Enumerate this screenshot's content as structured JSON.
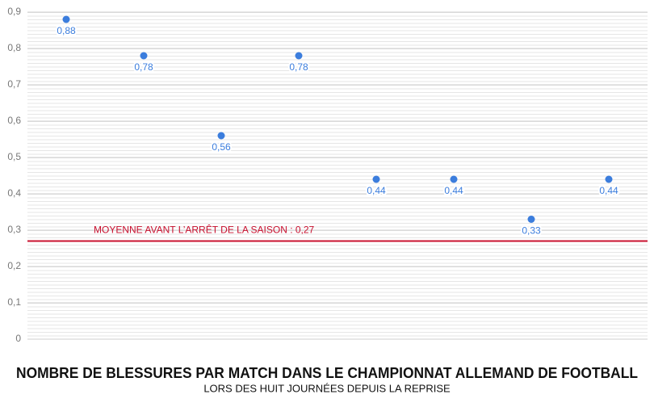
{
  "chart_data": {
    "type": "scatter",
    "title": "NOMBRE DE BLESSURES PAR MATCH DANS LE CHAMPIONNAT ALLEMAND DE FOOTBALL",
    "subtitle": "LORS DES HUIT JOURNÉES DEPUIS LA REPRISE",
    "categories": [
      null,
      null,
      null,
      null,
      null,
      null,
      null,
      null
    ],
    "values": [
      0.88,
      0.78,
      0.56,
      0.78,
      0.44,
      0.44,
      0.33,
      0.44
    ],
    "value_labels": [
      "0,88",
      "0,78",
      "0,56",
      "0,78",
      "0,44",
      "0,44",
      "0,33",
      "0,44"
    ],
    "color": "#3b7ddd",
    "ylim": [
      0,
      0.9
    ],
    "yticks": [
      0,
      {
        "value": 0.1,
        "label": "0,1"
      },
      {
        "value": 0.2,
        "label": "0,2"
      },
      {
        "value": 0.3,
        "label": "0,3"
      },
      {
        "value": 0.4,
        "label": "0,4"
      },
      {
        "value": 0.5,
        "label": "0,5"
      },
      {
        "value": 0.6,
        "label": "0,6"
      },
      {
        "value": 0.7,
        "label": "0,7"
      },
      {
        "value": 0.8,
        "label": "0,8"
      },
      {
        "value": 0.9,
        "label": "0,9"
      }
    ],
    "grid": true,
    "reference_line": {
      "value": 0.27,
      "label": "MOYENNE AVANT L’ARRÊT DE LA SAISON : 0,27",
      "color": "#c8102e"
    }
  }
}
